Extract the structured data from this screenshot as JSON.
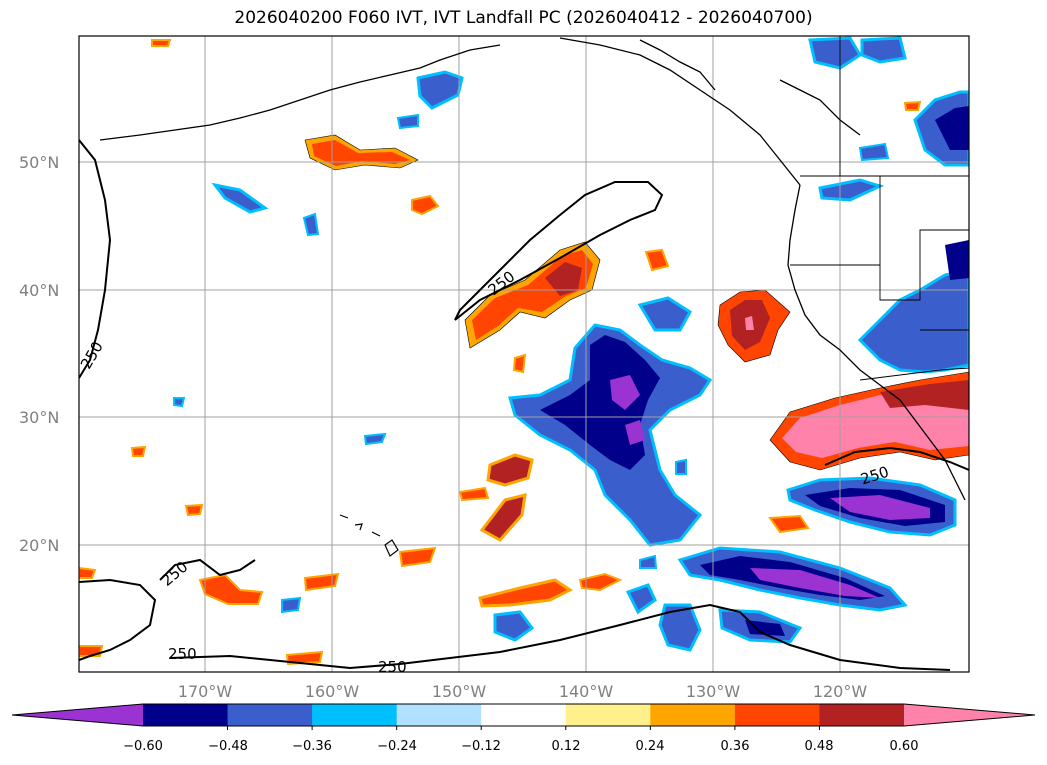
{
  "title": "2026040200 F060 IVT, IVT Landfall PC (2026040412 - 2026040700)",
  "map": {
    "lat_labels": [
      "50°N",
      "40°N",
      "30°N",
      "20°N"
    ],
    "lon_labels": [
      "170°W",
      "160°W",
      "150°W",
      "140°W",
      "130°W",
      "120°W"
    ],
    "contour_level": "250",
    "gridlines": true
  },
  "colorbar": {
    "ticks": [
      "−0.60",
      "−0.48",
      "−0.36",
      "−0.24",
      "−0.12",
      "0.12",
      "0.24",
      "0.36",
      "0.48",
      "0.60"
    ],
    "colors": [
      "#9b32d2",
      "#00008b",
      "#3a5fcd",
      "#00bfff",
      "#b0e2ff",
      "#ffffff",
      "#fff08c",
      "#ffa500",
      "#ff4500",
      "#b22222",
      "#ff82ab"
    ],
    "extend": "both"
  }
}
